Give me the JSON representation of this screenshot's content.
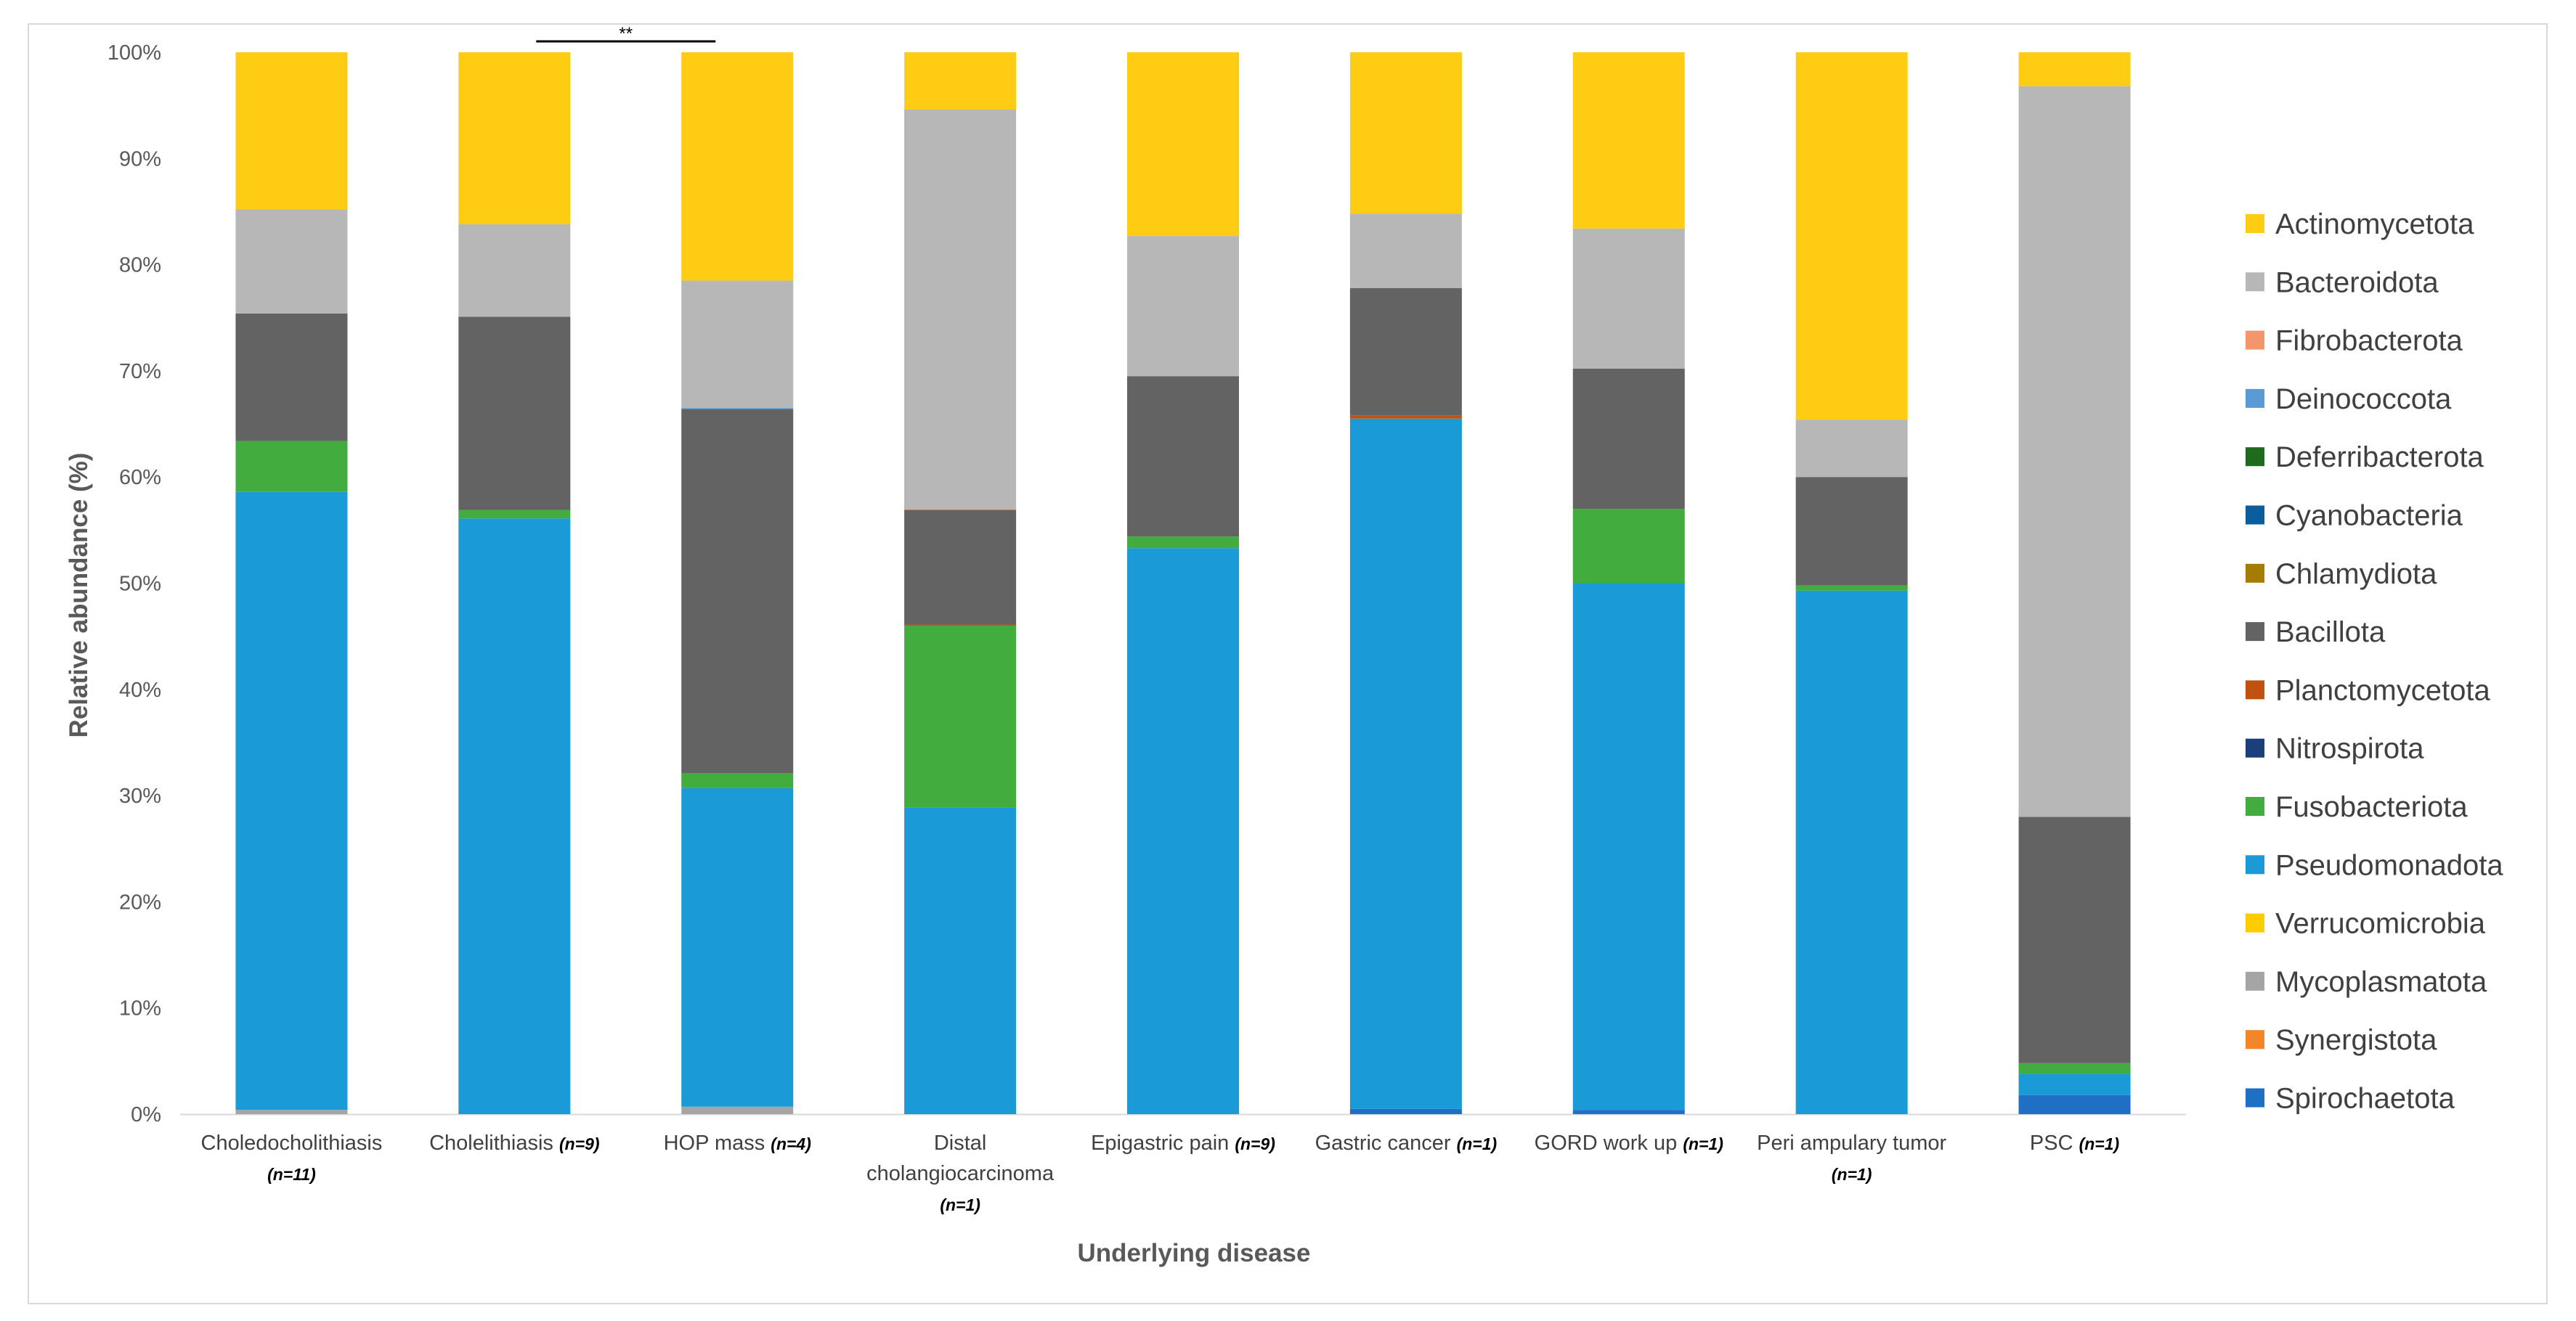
{
  "chart_data": {
    "type": "stacked_bar_100",
    "title": "",
    "xlabel": "Underlying disease",
    "ylabel": "Relative abundance (%)",
    "ylim": [
      0,
      100
    ],
    "y_ticks": [
      "0%",
      "10%",
      "20%",
      "30%",
      "40%",
      "50%",
      "60%",
      "70%",
      "80%",
      "90%",
      "100%"
    ],
    "legend_position": "right",
    "categories": [
      {
        "lines": [
          "Choledocholithiasis"
        ],
        "n": "(n=11)",
        "n_mode": "below"
      },
      {
        "lines": [
          "Cholelithiasis"
        ],
        "n": "(n=9)",
        "n_mode": "inline"
      },
      {
        "lines": [
          "HOP mass"
        ],
        "n": "(n=4)",
        "n_mode": "inline"
      },
      {
        "lines": [
          "Distal",
          "cholangiocarcinoma"
        ],
        "n": "(n=1)",
        "n_mode": "below"
      },
      {
        "lines": [
          "Epigastric pain"
        ],
        "n": "(n=9)",
        "n_mode": "inline"
      },
      {
        "lines": [
          "Gastric cancer"
        ],
        "n": "(n=1)",
        "n_mode": "inline"
      },
      {
        "lines": [
          "GORD work up"
        ],
        "n": "(n=1)",
        "n_mode": "inline"
      },
      {
        "lines": [
          "Peri ampulary tumor"
        ],
        "n": "(n=1)",
        "n_mode": "below"
      },
      {
        "lines": [
          "PSC"
        ],
        "n": "(n=1)",
        "n_mode": "inline"
      }
    ],
    "series": [
      {
        "name": "Spirochaetota",
        "color": "#1f6fc5",
        "values": [
          0,
          0,
          0,
          0,
          0,
          0.5,
          0.4,
          0,
          1.8
        ]
      },
      {
        "name": "Synergistota",
        "color": "#f4862a",
        "values": [
          0,
          0,
          0,
          0,
          0,
          0,
          0,
          0,
          0
        ]
      },
      {
        "name": "Mycoplasmatota",
        "color": "#a5a5a5",
        "values": [
          0.4,
          0,
          0.7,
          0,
          0,
          0,
          0,
          0,
          0
        ]
      },
      {
        "name": "Verrucomicrobia",
        "color": "#ffcc00",
        "values": [
          0,
          0,
          0,
          0,
          0,
          0,
          0,
          0,
          0
        ]
      },
      {
        "name": "Pseudomonadota",
        "color": "#1a9bd7",
        "values": [
          58.2,
          56.1,
          30.0,
          28.9,
          53.3,
          65.0,
          49.6,
          49.3,
          2.0
        ]
      },
      {
        "name": "Fusobacteriota",
        "color": "#42ad3e",
        "values": [
          4.8,
          0.8,
          1.4,
          17.1,
          1.1,
          0,
          7.0,
          0.5,
          1.0
        ]
      },
      {
        "name": "Nitrospirota",
        "color": "#1b3f7a",
        "values": [
          0,
          0,
          0,
          0,
          0,
          0,
          0,
          0,
          0
        ]
      },
      {
        "name": "Planctomycetota",
        "color": "#c0510f",
        "values": [
          0,
          0,
          0,
          0.1,
          0,
          0.3,
          0,
          0,
          0
        ]
      },
      {
        "name": "Bacillota",
        "color": "#636363",
        "values": [
          12.0,
          18.2,
          34.3,
          10.8,
          15.1,
          12.0,
          13.2,
          10.2,
          23.2
        ]
      },
      {
        "name": "Chlamydiota",
        "color": "#a37c00",
        "values": [
          0,
          0,
          0,
          0,
          0,
          0,
          0,
          0,
          0
        ]
      },
      {
        "name": "Cyanobacteria",
        "color": "#0b5e9e",
        "values": [
          0,
          0,
          0,
          0,
          0,
          0,
          0,
          0,
          0
        ]
      },
      {
        "name": "Deferribacterota",
        "color": "#1e6b1e",
        "values": [
          0,
          0,
          0,
          0,
          0,
          0,
          0,
          0,
          0
        ]
      },
      {
        "name": "Deinococcota",
        "color": "#5b9bd5",
        "values": [
          0,
          0,
          0.1,
          0,
          0,
          0,
          0,
          0,
          0
        ]
      },
      {
        "name": "Fibrobacterota",
        "color": "#f4956b",
        "values": [
          0,
          0,
          0,
          0.1,
          0,
          0,
          0,
          0,
          0
        ]
      },
      {
        "name": "Bacteroidota",
        "color": "#b7b7b7",
        "values": [
          9.8,
          8.7,
          12.0,
          37.6,
          13.2,
          7.0,
          13.2,
          5.4,
          68.8
        ]
      },
      {
        "name": "Actinomycetota",
        "color": "#ffcc14",
        "values": [
          14.8,
          16.2,
          21.5,
          5.4,
          17.3,
          15.2,
          16.6,
          34.6,
          3.2
        ]
      }
    ],
    "legend_order": [
      "Actinomycetota",
      "Bacteroidota",
      "Fibrobacterota",
      "Deinococcota",
      "Deferribacterota",
      "Cyanobacteria",
      "Chlamydiota",
      "Bacillota",
      "Planctomycetota",
      "Nitrospirota",
      "Fusobacteriota",
      "Pseudomonadota",
      "Verrucomicrobia",
      "Mycoplasmatota",
      "Synergistota",
      "Spirochaetota"
    ],
    "annotations": [
      {
        "text": "**",
        "from_category": 1,
        "to_category": 2
      }
    ]
  }
}
